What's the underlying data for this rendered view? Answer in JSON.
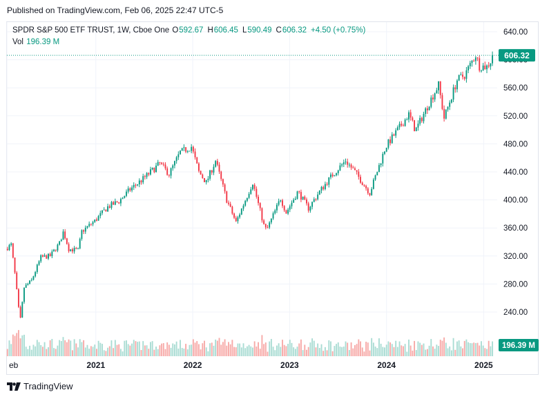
{
  "published": "Published on TradingView.com, Feb 06, 2025 22:47 UTC-5",
  "legend": {
    "symbol": "SPDR S&P 500 ETF TRUST, 1W, Cboe One",
    "open_label": "O",
    "open": "592.67",
    "high_label": "H",
    "high": "606.45",
    "low_label": "L",
    "low": "590.49",
    "close_label": "C",
    "close": "606.32",
    "change": "+4.50 (+0.75%)",
    "vol_label": "Vol",
    "vol": "196.39 M"
  },
  "footer": {
    "brand": "TradingView",
    "logo_icon": "tradingview-logo-icon"
  },
  "colors": {
    "up": "#089981",
    "down": "#f23645",
    "grid": "#f0f3fa",
    "axis_text": "#131722",
    "up_volume": "#a9dcd3",
    "down_volume": "#f7a9a7"
  },
  "chart_data": {
    "type": "candlestick",
    "interval": "1W",
    "ylim": [
      200,
      650
    ],
    "y_ticks": [
      240,
      280,
      320,
      360,
      400,
      440,
      480,
      520,
      560,
      600,
      640
    ],
    "y_tick_labels": [
      "240.00",
      "280.00",
      "320.00",
      "360.00",
      "400.00",
      "440.00",
      "480.00",
      "520.00",
      "560.00",
      "600.00",
      "640.00"
    ],
    "x_tick_labels": [
      "eb",
      "2021",
      "2022",
      "2023",
      "2024",
      "2025"
    ],
    "x_tick_dates": [
      "2020-02-01",
      "2021-01-01",
      "2022-01-01",
      "2023-01-01",
      "2024-01-01",
      "2025-01-01"
    ],
    "x_range": [
      "2020-02-01",
      "2025-02-21"
    ],
    "last_price": 606.32,
    "last_price_label": "606.32",
    "volume_label": "196.39 M",
    "close_anchors": [
      [
        "2020-02-03",
        332
      ],
      [
        "2020-02-17",
        336
      ],
      [
        "2020-03-02",
        295
      ],
      [
        "2020-03-16",
        245
      ],
      [
        "2020-03-23",
        230
      ],
      [
        "2020-04-06",
        275
      ],
      [
        "2020-05-04",
        285
      ],
      [
        "2020-06-08",
        318
      ],
      [
        "2020-07-13",
        320
      ],
      [
        "2020-08-17",
        338
      ],
      [
        "2020-09-01",
        355
      ],
      [
        "2020-09-21",
        330
      ],
      [
        "2020-10-26",
        328
      ],
      [
        "2020-11-09",
        355
      ],
      [
        "2020-12-28",
        370
      ],
      [
        "2021-02-15",
        390
      ],
      [
        "2021-03-29",
        398
      ],
      [
        "2021-05-10",
        415
      ],
      [
        "2021-06-28",
        430
      ],
      [
        "2021-08-30",
        452
      ],
      [
        "2021-10-04",
        437
      ],
      [
        "2021-11-15",
        468
      ],
      [
        "2021-12-27",
        476
      ],
      [
        "2022-01-24",
        440
      ],
      [
        "2022-02-21",
        425
      ],
      [
        "2022-03-28",
        456
      ],
      [
        "2022-05-09",
        400
      ],
      [
        "2022-06-13",
        368
      ],
      [
        "2022-08-15",
        425
      ],
      [
        "2022-09-30",
        358
      ],
      [
        "2022-10-10",
        360
      ],
      [
        "2022-11-28",
        402
      ],
      [
        "2022-12-19",
        382
      ],
      [
        "2023-02-01",
        412
      ],
      [
        "2023-03-13",
        388
      ],
      [
        "2023-04-24",
        412
      ],
      [
        "2023-06-12",
        436
      ],
      [
        "2023-07-31",
        456
      ],
      [
        "2023-09-04",
        440
      ],
      [
        "2023-10-30",
        410
      ],
      [
        "2023-12-29",
        476
      ],
      [
        "2024-03-25",
        522
      ],
      [
        "2024-04-19",
        499
      ],
      [
        "2024-06-17",
        544
      ],
      [
        "2024-07-15",
        564
      ],
      [
        "2024-08-05",
        517
      ],
      [
        "2024-09-23",
        571
      ],
      [
        "2024-10-21",
        578
      ],
      [
        "2024-12-02",
        607
      ],
      [
        "2024-12-16",
        591
      ],
      [
        "2025-01-13",
        590
      ],
      [
        "2025-01-27",
        598
      ],
      [
        "2025-02-03",
        606.32
      ]
    ],
    "volume_range_millions": [
      150,
      700
    ]
  }
}
